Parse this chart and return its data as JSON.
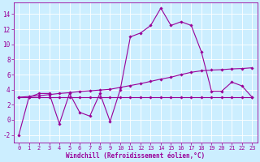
{
  "xlabel": "Windchill (Refroidissement éolien,°C)",
  "bg_color": "#cceeff",
  "grid_color": "#ffffff",
  "line_color": "#990099",
  "xlim": [
    -0.5,
    23.5
  ],
  "ylim": [
    -3.0,
    15.5
  ],
  "yticks": [
    -2,
    0,
    2,
    4,
    6,
    8,
    10,
    12,
    14
  ],
  "xticks": [
    0,
    1,
    2,
    3,
    4,
    5,
    6,
    7,
    8,
    9,
    10,
    11,
    12,
    13,
    14,
    15,
    16,
    17,
    18,
    19,
    20,
    21,
    22,
    23
  ],
  "series1_x": [
    0,
    1,
    2,
    3,
    4,
    5,
    6,
    7,
    8,
    9,
    10,
    11,
    12,
    13,
    14,
    15,
    16,
    17,
    18,
    19,
    20,
    21,
    22,
    23
  ],
  "series1_y": [
    -2,
    3,
    3.5,
    3.5,
    -0.5,
    3.5,
    1.0,
    0.5,
    3.5,
    -0.2,
    4.0,
    11.0,
    11.5,
    12.5,
    14.8,
    12.5,
    13.0,
    12.5,
    9.0,
    3.8,
    3.8,
    5.0,
    4.5,
    3.0
  ],
  "series2_x": [
    0,
    1,
    2,
    3,
    4,
    5,
    6,
    7,
    8,
    9,
    10,
    11,
    12,
    13,
    14,
    15,
    16,
    17,
    18,
    19,
    20,
    21,
    22,
    23
  ],
  "series2_y": [
    3.0,
    3.0,
    3.0,
    3.0,
    3.0,
    3.0,
    3.0,
    3.0,
    3.0,
    3.0,
    3.0,
    3.0,
    3.0,
    3.0,
    3.0,
    3.0,
    3.0,
    3.0,
    3.0,
    3.0,
    3.0,
    3.0,
    3.0,
    3.0
  ],
  "series3_x": [
    0,
    1,
    2,
    3,
    4,
    5,
    6,
    7,
    8,
    9,
    10,
    11,
    12,
    13,
    14,
    15,
    16,
    17,
    18,
    19,
    20,
    21,
    22,
    23
  ],
  "series3_y": [
    3.0,
    3.1,
    3.2,
    3.35,
    3.5,
    3.6,
    3.75,
    3.85,
    3.95,
    4.05,
    4.3,
    4.55,
    4.8,
    5.1,
    5.4,
    5.65,
    6.0,
    6.3,
    6.5,
    6.6,
    6.65,
    6.75,
    6.8,
    6.9
  ],
  "tick_fontsize": 5.0,
  "xlabel_fontsize": 5.5,
  "marker_size": 1.8,
  "linewidth": 0.8
}
